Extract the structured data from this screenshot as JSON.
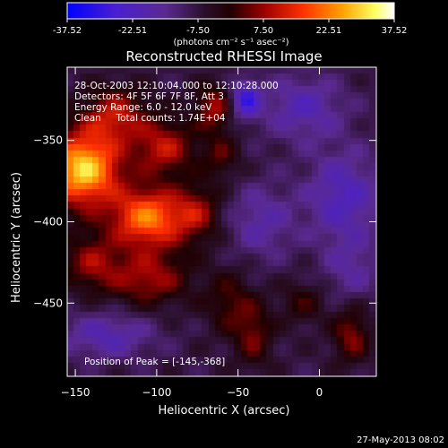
{
  "colorbar": {
    "ticks": [
      "-37.52",
      "-22.51",
      "-7.50",
      "7.50",
      "22.51",
      "37.52"
    ],
    "tick_values": [
      -37.52,
      -22.51,
      -7.5,
      7.5,
      22.51,
      37.52
    ],
    "min": -37.52,
    "max": 37.52,
    "unit_label": "(photons cm⁻² s⁻¹ asec⁻²)"
  },
  "title": "Reconstructed RHESSI Image",
  "info": {
    "time": "28-Oct-2003 12:10:04.000 to 12:10:28.000",
    "detectors": "Detectors: 4F 5F 6F 7F 8F, Att 3",
    "energy": "Energy Range: 6.0 - 12.0 keV",
    "method": "Clean     Total counts: 1.74E+04"
  },
  "peak_label": "Position of Peak = [-145,-368]",
  "timestamp": "27-May-2013 08:02",
  "colors": {
    "background": "#000000",
    "axes": "#ffffff",
    "colormap": [
      "#0000ff",
      "#5a1fbf",
      "#3b1a66",
      "#1a0a1a",
      "#7a0000",
      "#d01010",
      "#ff6000",
      "#ffb000",
      "#ffff70",
      "#ffffff"
    ]
  },
  "chart_data": {
    "type": "heatmap",
    "title": "Reconstructed RHESSI Image",
    "xlabel": "Heliocentric X (arcsec)",
    "ylabel": "Heliocentric Y (arcsec)",
    "xlim": [
      -155,
      35
    ],
    "ylim": [
      -495,
      -305
    ],
    "x_ticks": [
      -150,
      -100,
      -50,
      0
    ],
    "y_ticks": [
      -350,
      -400,
      -450
    ],
    "x_tick_labels": [
      "−150",
      "−100",
      "−50",
      "0"
    ],
    "y_tick_labels": [
      "−350",
      "−400",
      "−450"
    ],
    "value_range": [
      -37.52,
      37.52
    ],
    "peak": {
      "x": -145,
      "y": -368,
      "value": 37.52
    },
    "components": [
      {
        "x": -145,
        "y": -368,
        "amp": 38,
        "sx": 16,
        "sy": 16
      },
      {
        "x": -105,
        "y": -398,
        "amp": 30,
        "sx": 16,
        "sy": 13
      },
      {
        "x": -125,
        "y": -335,
        "amp": 18,
        "sx": 14,
        "sy": 12
      },
      {
        "x": -95,
        "y": -355,
        "amp": 18,
        "sx": 13,
        "sy": 12
      },
      {
        "x": -75,
        "y": -395,
        "amp": 14,
        "sx": 10,
        "sy": 12
      },
      {
        "x": -105,
        "y": -435,
        "amp": 16,
        "sx": 18,
        "sy": 12
      },
      {
        "x": -140,
        "y": -425,
        "amp": 14,
        "sx": 12,
        "sy": 12
      },
      {
        "x": -65,
        "y": -330,
        "amp": 16,
        "sx": 8,
        "sy": 10
      },
      {
        "x": -60,
        "y": -360,
        "amp": 10,
        "sx": 8,
        "sy": 10
      },
      {
        "x": -55,
        "y": -450,
        "amp": 10,
        "sx": 10,
        "sy": 14
      },
      {
        "x": -40,
        "y": -470,
        "amp": 12,
        "sx": 8,
        "sy": 14
      },
      {
        "x": 20,
        "y": -470,
        "amp": 14,
        "sx": 8,
        "sy": 12
      },
      {
        "x": -10,
        "y": -450,
        "amp": 8,
        "sx": 10,
        "sy": 10
      },
      {
        "x": 15,
        "y": -385,
        "amp": -14,
        "sx": 16,
        "sy": 20
      },
      {
        "x": -35,
        "y": -400,
        "amp": -10,
        "sx": 14,
        "sy": 16
      },
      {
        "x": -10,
        "y": -330,
        "amp": -12,
        "sx": 18,
        "sy": 14
      },
      {
        "x": -45,
        "y": -325,
        "amp": -20,
        "sx": 6,
        "sy": 8
      },
      {
        "x": -130,
        "y": -470,
        "amp": -12,
        "sx": 20,
        "sy": 10
      },
      {
        "x": 20,
        "y": -430,
        "amp": -8,
        "sx": 12,
        "sy": 14
      }
    ]
  }
}
